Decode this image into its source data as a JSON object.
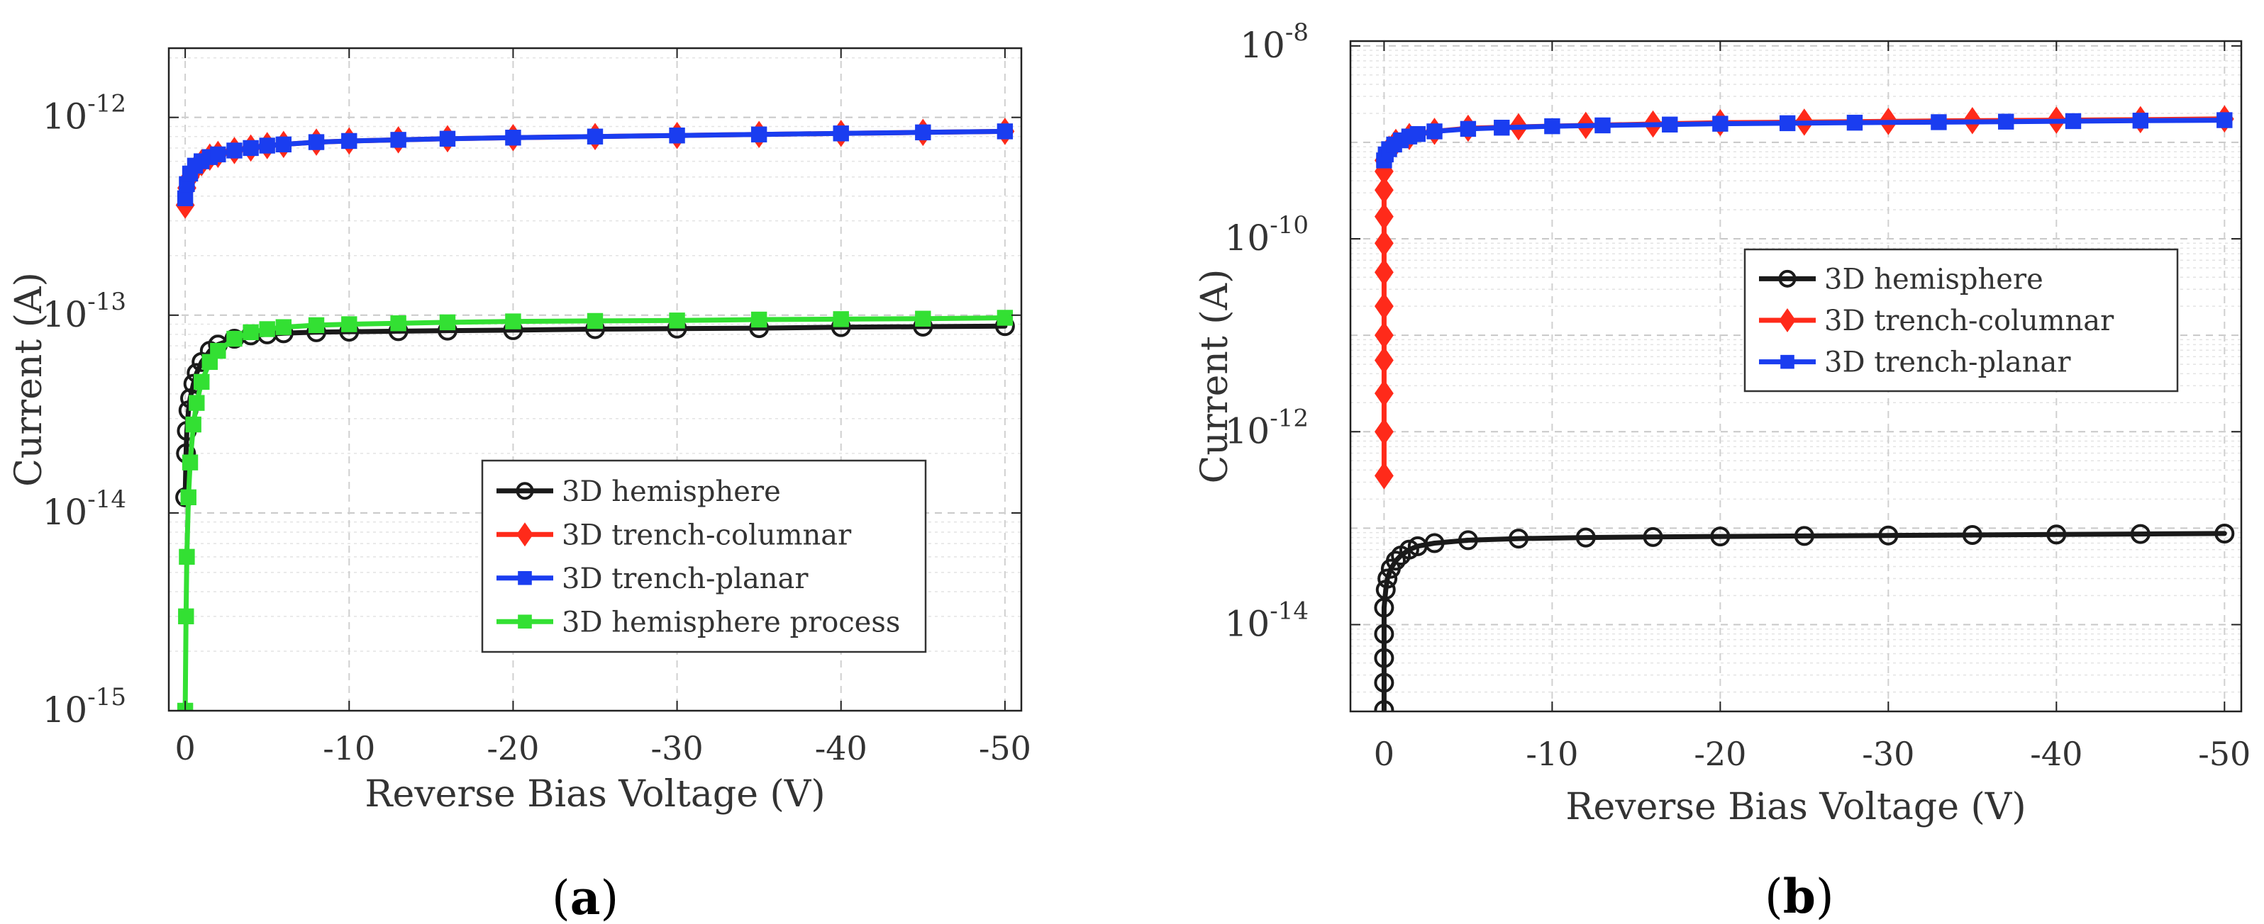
{
  "chart_data": [
    {
      "id": "a",
      "type": "line",
      "caption_letter": "a",
      "xlabel": "Reverse Bias Voltage (V)",
      "ylabel": "Current (A)",
      "x_ticks": [
        0,
        -10,
        -20,
        -30,
        -40,
        -50
      ],
      "x_tick_labels": [
        "0",
        "-10",
        "-20",
        "-30",
        "-40",
        "-50"
      ],
      "xlim": [
        1,
        -51
      ],
      "y_ticks_exponents": [
        -15,
        -14,
        -13,
        -12
      ],
      "y_tick_labels": [
        {
          "base": "10",
          "exp": "-15"
        },
        {
          "base": "10",
          "exp": "-14"
        },
        {
          "base": "10",
          "exp": "-13"
        },
        {
          "base": "10",
          "exp": "-12"
        }
      ],
      "ylim_log10": [
        -15,
        -11.65
      ],
      "grid": true,
      "legend_position": "lower-right",
      "series": [
        {
          "name": "3D hemisphere",
          "color": "#1a1a1a",
          "marker": "circle",
          "x": [
            0,
            -0.05,
            -0.1,
            -0.2,
            -0.3,
            -0.5,
            -0.7,
            -1,
            -1.5,
            -2,
            -3,
            -4,
            -5,
            -6,
            -8,
            -10,
            -13,
            -16,
            -20,
            -25,
            -30,
            -35,
            -40,
            -45,
            -50
          ],
          "y": [
            1.2e-14,
            2e-14,
            2.6e-14,
            3.3e-14,
            3.8e-14,
            4.5e-14,
            5.1e-14,
            5.8e-14,
            6.6e-14,
            7.1e-14,
            7.6e-14,
            7.9e-14,
            8e-14,
            8.1e-14,
            8.2e-14,
            8.25e-14,
            8.3e-14,
            8.35e-14,
            8.4e-14,
            8.5e-14,
            8.55e-14,
            8.6e-14,
            8.7e-14,
            8.75e-14,
            8.8e-14
          ]
        },
        {
          "name": "3D trench-columnar",
          "color": "#ff2a1a",
          "marker": "diamond",
          "x": [
            0,
            -0.1,
            -0.3,
            -0.6,
            -1,
            -1.5,
            -2,
            -3,
            -4,
            -5,
            -6,
            -8,
            -10,
            -13,
            -16,
            -20,
            -25,
            -30,
            -35,
            -40,
            -45,
            -50
          ],
          "y": [
            3.6e-13,
            4.4e-13,
            5e-13,
            5.5e-13,
            5.9e-13,
            6.3e-13,
            6.5e-13,
            6.8e-13,
            7e-13,
            7.2e-13,
            7.3e-13,
            7.5e-13,
            7.6e-13,
            7.7e-13,
            7.8e-13,
            7.9e-13,
            8e-13,
            8.1e-13,
            8.2e-13,
            8.3e-13,
            8.4e-13,
            8.5e-13
          ]
        },
        {
          "name": "3D trench-planar",
          "color": "#1a3df0",
          "marker": "square",
          "x": [
            0,
            -0.1,
            -0.3,
            -0.6,
            -1,
            -1.5,
            -2,
            -3,
            -4,
            -5,
            -6,
            -8,
            -10,
            -13,
            -16,
            -20,
            -25,
            -30,
            -35,
            -40,
            -45,
            -50
          ],
          "y": [
            3.9e-13,
            4.6e-13,
            5.2e-13,
            5.7e-13,
            6e-13,
            6.3e-13,
            6.5e-13,
            6.8e-13,
            7e-13,
            7.2e-13,
            7.3e-13,
            7.5e-13,
            7.6e-13,
            7.7e-13,
            7.8e-13,
            7.9e-13,
            8e-13,
            8.1e-13,
            8.2e-13,
            8.3e-13,
            8.4e-13,
            8.5e-13
          ]
        },
        {
          "name": "3D hemisphere process",
          "color": "#33e033",
          "marker": "square",
          "x": [
            0,
            -0.05,
            -0.1,
            -0.2,
            -0.3,
            -0.5,
            -0.7,
            -1,
            -1.5,
            -2,
            -3,
            -4,
            -5,
            -6,
            -8,
            -10,
            -13,
            -16,
            -20,
            -25,
            -30,
            -35,
            -40,
            -45,
            -50
          ],
          "y": [
            1e-15,
            3e-15,
            6e-15,
            1.2e-14,
            1.8e-14,
            2.8e-14,
            3.6e-14,
            4.6e-14,
            5.8e-14,
            6.6e-14,
            7.6e-14,
            8.2e-14,
            8.5e-14,
            8.7e-14,
            8.9e-14,
            9e-14,
            9.1e-14,
            9.2e-14,
            9.3e-14,
            9.35e-14,
            9.4e-14,
            9.5e-14,
            9.55e-14,
            9.6e-14,
            9.7e-14
          ]
        }
      ]
    },
    {
      "id": "b",
      "type": "line",
      "caption_letter": "b",
      "xlabel": "Reverse Bias Voltage (V)",
      "ylabel": "Current (A)",
      "x_ticks": [
        0,
        -10,
        -20,
        -30,
        -40,
        -50
      ],
      "x_tick_labels": [
        "0",
        "-10",
        "-20",
        "-30",
        "-40",
        "-50"
      ],
      "xlim": [
        2,
        -51
      ],
      "y_ticks_exponents": [
        -14,
        -12,
        -10,
        -8
      ],
      "y_tick_labels": [
        {
          "base": "10",
          "exp": "-14"
        },
        {
          "base": "10",
          "exp": "-12"
        },
        {
          "base": "10",
          "exp": "-10"
        },
        {
          "base": "10",
          "exp": "-8"
        }
      ],
      "ylim_log10": [
        -14.9,
        -7.95
      ],
      "grid": true,
      "legend_position": "center-right",
      "series": [
        {
          "name": "3D hemisphere",
          "color": "#1a1a1a",
          "marker": "circle",
          "x": [
            0,
            0,
            0,
            0,
            0,
            -0.1,
            -0.2,
            -0.4,
            -0.7,
            -1,
            -1.5,
            -2,
            -3,
            -5,
            -8,
            -12,
            -16,
            -20,
            -25,
            -30,
            -35,
            -40,
            -45,
            -50
          ],
          "y": [
            1.3e-15,
            2.5e-15,
            4.5e-15,
            8e-15,
            1.5e-14,
            2.3e-14,
            3e-14,
            3.8e-14,
            4.6e-14,
            5.2e-14,
            6e-14,
            6.5e-14,
            7e-14,
            7.5e-14,
            7.8e-14,
            8e-14,
            8.1e-14,
            8.2e-14,
            8.3e-14,
            8.4e-14,
            8.5e-14,
            8.6e-14,
            8.7e-14,
            8.8e-14
          ]
        },
        {
          "name": "3D trench-columnar",
          "color": "#ff2a1a",
          "marker": "diamond",
          "x": [
            0,
            0,
            0,
            0,
            0,
            0,
            0,
            0,
            0,
            0,
            0,
            0,
            -0.3,
            -0.7,
            -1.5,
            -3,
            -5,
            -8,
            -12,
            -16,
            -20,
            -25,
            -30,
            -35,
            -40,
            -45,
            -50
          ],
          "y": [
            3.5e-13,
            1e-12,
            2.5e-12,
            5.5e-12,
            1e-11,
            2e-11,
            4.5e-11,
            9e-11,
            1.7e-10,
            3.2e-10,
            5e-10,
            6.5e-10,
            8.5e-10,
            1e-09,
            1.15e-09,
            1.3e-09,
            1.4e-09,
            1.45e-09,
            1.5e-09,
            1.55e-09,
            1.6e-09,
            1.62e-09,
            1.65e-09,
            1.68e-09,
            1.7e-09,
            1.72e-09,
            1.75e-09
          ]
        },
        {
          "name": "3D trench-planar",
          "color": "#1a3df0",
          "marker": "square",
          "x": [
            0,
            -0.1,
            -0.3,
            -0.6,
            -1,
            -1.5,
            -2,
            -3,
            -5,
            -7,
            -10,
            -13,
            -17,
            -20,
            -24,
            -28,
            -33,
            -37,
            -41,
            -45,
            -50
          ],
          "y": [
            6.5e-10,
            7.5e-10,
            8.5e-10,
            9.5e-10,
            1.05e-09,
            1.15e-09,
            1.22e-09,
            1.3e-09,
            1.38e-09,
            1.42e-09,
            1.47e-09,
            1.5e-09,
            1.53e-09,
            1.56e-09,
            1.58e-09,
            1.6e-09,
            1.62e-09,
            1.64e-09,
            1.66e-09,
            1.68e-09,
            1.7e-09
          ]
        }
      ]
    }
  ]
}
